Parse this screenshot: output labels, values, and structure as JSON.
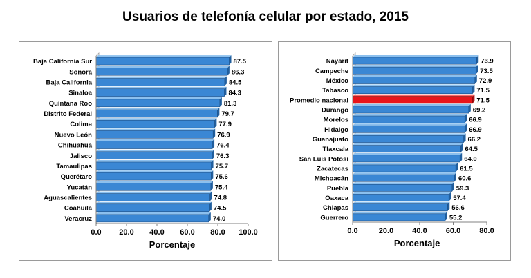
{
  "title": "Usuarios de telefonía celular por estado, 2015",
  "chart_data": [
    {
      "type": "bar",
      "orientation": "horizontal",
      "categories": [
        "Baja California Sur",
        "Sonora",
        "Baja California",
        "Sinaloa",
        "Quintana Roo",
        "Distrito Federal",
        "Colima",
        "Nuevo León",
        "Chihuahua",
        "Jalisco",
        "Tamaulipas",
        "Querétaro",
        "Yucatán",
        "Aguascalientes",
        "Coahuila",
        "Veracruz"
      ],
      "values": [
        87.5,
        86.3,
        84.5,
        84.3,
        81.3,
        79.7,
        77.9,
        76.9,
        76.4,
        76.3,
        75.7,
        75.6,
        75.4,
        74.8,
        74.5,
        74.0
      ],
      "value_labels": [
        "87.5",
        "86.3",
        "84.5",
        "84.3",
        "81.3",
        "79.7",
        "77.9",
        "76.9",
        "76.4",
        "76.3",
        "75.7",
        "75.6",
        "75.4",
        "74.8",
        "74.5",
        "74.0"
      ],
      "xlabel": "Porcentaje",
      "xlim": [
        0,
        100
      ],
      "xticks": [
        "0.0",
        "20.0",
        "40.0",
        "60.0",
        "80.0",
        "100.0"
      ],
      "bar_color": "#3a87d4",
      "grid": false
    },
    {
      "type": "bar",
      "orientation": "horizontal",
      "categories": [
        "Nayarit",
        "Campeche",
        "México",
        "Tabasco",
        "Promedio nacional",
        "Durango",
        "Morelos",
        "Hidalgo",
        "Guanajuato",
        "Tlaxcala",
        "San Luis Potosí",
        "Zacatecas",
        "Michoacán",
        "Puebla",
        "Oaxaca",
        "Chiapas",
        "Guerrero"
      ],
      "values": [
        73.9,
        73.5,
        72.9,
        71.5,
        71.5,
        69.2,
        66.9,
        66.9,
        66.2,
        64.5,
        64.0,
        61.5,
        60.6,
        59.3,
        57.4,
        56.6,
        55.2
      ],
      "value_labels": [
        "73.9",
        "73.5",
        "72.9",
        "71.5",
        "71.5",
        "69.2",
        "66.9",
        "66.9",
        "66.2",
        "64.5",
        "64.0",
        "61.5",
        "60.6",
        "59.3",
        "57.4",
        "56.6",
        "55.2"
      ],
      "highlight": "Promedio nacional",
      "xlabel": "Porcentaje",
      "xlim": [
        0,
        80
      ],
      "xticks": [
        "0.0",
        "20.0",
        "40.0",
        "60.0",
        "80.0"
      ],
      "bar_color": "#3a87d4",
      "highlight_color": "#e8141a",
      "grid": false
    }
  ]
}
